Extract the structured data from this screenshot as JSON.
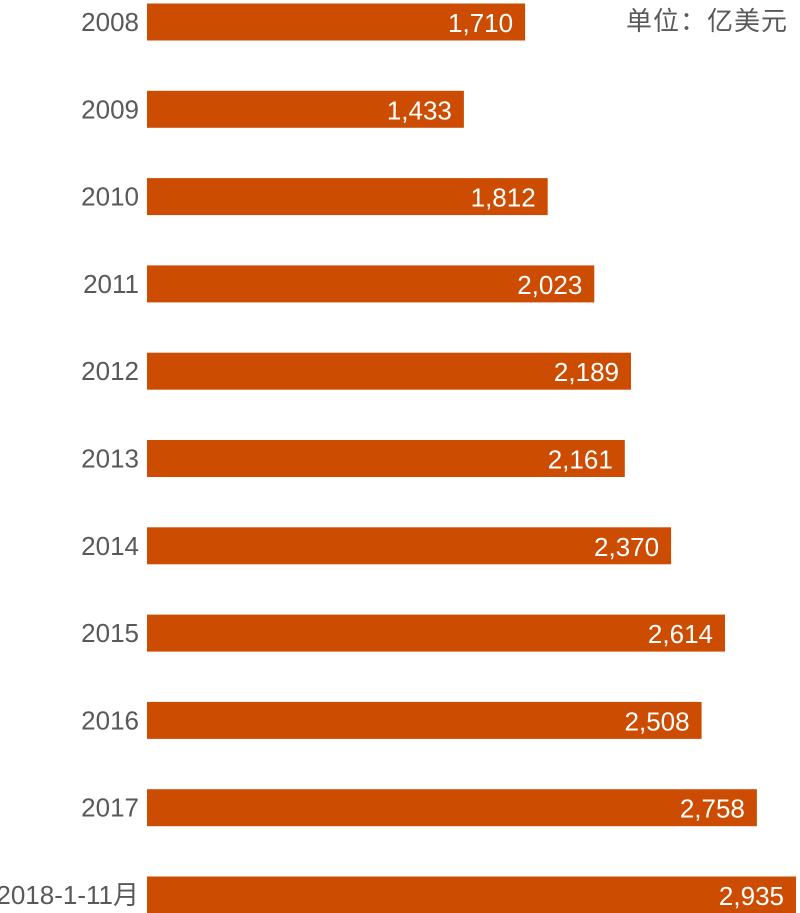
{
  "colors": {
    "bar": "#cc4c02",
    "category_text": "#595959",
    "value_text": "#ffffff",
    "background": "#ffffff"
  },
  "chart_data": {
    "type": "bar",
    "orientation": "horizontal",
    "unit_label": "单位：亿美元",
    "categories": [
      "2008",
      "2009",
      "2010",
      "2011",
      "2012",
      "2013",
      "2014",
      "2015",
      "2016",
      "2017",
      "2018-1-11月"
    ],
    "values": [
      1710,
      1433,
      1812,
      2023,
      2189,
      2161,
      2370,
      2614,
      2508,
      2758,
      2935
    ],
    "value_labels": [
      "1,710",
      "1,433",
      "1,812",
      "2,023",
      "2,189",
      "2,161",
      "2,370",
      "2,614",
      "2,508",
      "2,758",
      "2,935"
    ],
    "xlim": [
      0,
      2935
    ],
    "grid": false,
    "legend": "none"
  }
}
